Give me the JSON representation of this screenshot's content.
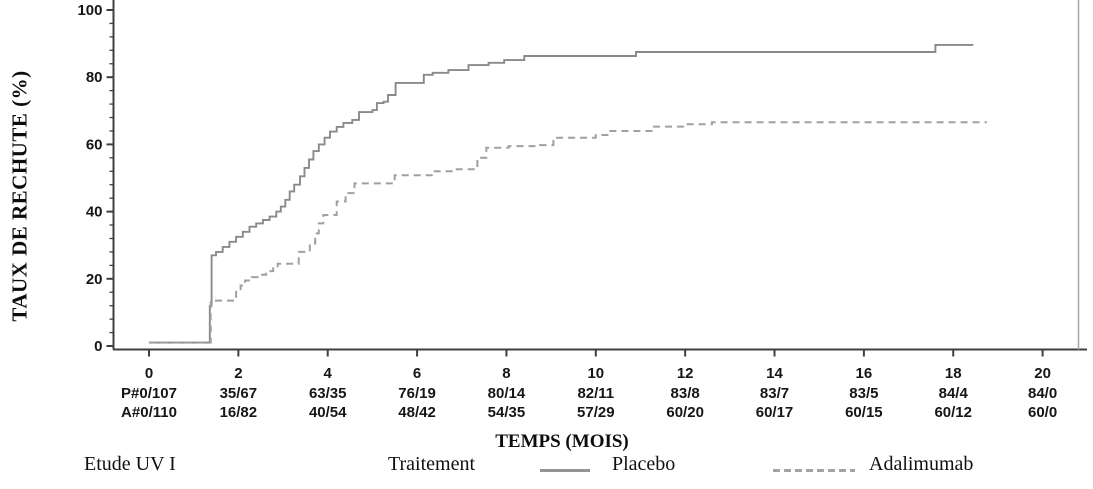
{
  "figure": {
    "legend": {
      "study": "Etude UV I",
      "treatment_header": "Traitement",
      "series1": "Placebo",
      "series2": "Adalimumab"
    }
  },
  "chart_data": {
    "type": "line",
    "subtype": "kaplan-meier-step",
    "title": "",
    "xlabel": "TEMPS (MOIS)",
    "ylabel": "TAUX DE RECHUTE (%)",
    "xlim": [
      0,
      21
    ],
    "ylim": [
      0,
      100
    ],
    "x_ticks": [
      0,
      2,
      4,
      6,
      8,
      10,
      12,
      14,
      16,
      18,
      20
    ],
    "y_ticks": [
      0,
      20,
      40,
      60,
      80,
      100
    ],
    "y_minor_step": 4,
    "grid": false,
    "legend_position": "bottom",
    "series": [
      {
        "name": "Placebo",
        "style": "solid",
        "color": "#8a8a8a",
        "points": [
          [
            0,
            1
          ],
          [
            1.32,
            1
          ],
          [
            1.36,
            12
          ],
          [
            1.4,
            27
          ],
          [
            1.5,
            28
          ],
          [
            1.65,
            29.5
          ],
          [
            1.8,
            31
          ],
          [
            1.95,
            32.5
          ],
          [
            2.1,
            34
          ],
          [
            2.25,
            35.5
          ],
          [
            2.4,
            36.5
          ],
          [
            2.55,
            37.5
          ],
          [
            2.7,
            38.5
          ],
          [
            2.85,
            40
          ],
          [
            2.95,
            41.5
          ],
          [
            3.05,
            43.5
          ],
          [
            3.15,
            46
          ],
          [
            3.25,
            48
          ],
          [
            3.38,
            50.5
          ],
          [
            3.48,
            53
          ],
          [
            3.58,
            55.5
          ],
          [
            3.68,
            58
          ],
          [
            3.8,
            60
          ],
          [
            3.93,
            62
          ],
          [
            4.05,
            63.8
          ],
          [
            4.2,
            65.2
          ],
          [
            4.35,
            66.4
          ],
          [
            4.55,
            67.3
          ],
          [
            4.7,
            69.6
          ],
          [
            5.0,
            70.2
          ],
          [
            5.1,
            72.3
          ],
          [
            5.25,
            72.7
          ],
          [
            5.35,
            74.7
          ],
          [
            5.52,
            78.3
          ],
          [
            6.15,
            80.7
          ],
          [
            6.35,
            81.3
          ],
          [
            6.7,
            82.1
          ],
          [
            7.15,
            83.6
          ],
          [
            7.6,
            84.3
          ],
          [
            7.95,
            85.1
          ],
          [
            8.4,
            86.3
          ],
          [
            10.9,
            87.5
          ],
          [
            17.6,
            89.6
          ],
          [
            18.45,
            89.6
          ]
        ]
      },
      {
        "name": "Adalimumab",
        "style": "dashed",
        "color": "#a0a0a0",
        "points": [
          [
            0,
            1
          ],
          [
            1.32,
            1
          ],
          [
            1.38,
            13.5
          ],
          [
            1.95,
            16.5
          ],
          [
            2.05,
            18
          ],
          [
            2.15,
            19.5
          ],
          [
            2.3,
            20.5
          ],
          [
            2.5,
            21.2
          ],
          [
            2.62,
            22.3
          ],
          [
            2.78,
            23.2
          ],
          [
            2.88,
            24.5
          ],
          [
            3.35,
            28
          ],
          [
            3.6,
            30.5
          ],
          [
            3.72,
            33.5
          ],
          [
            3.8,
            36.5
          ],
          [
            3.9,
            39
          ],
          [
            4.2,
            43
          ],
          [
            4.4,
            45.5
          ],
          [
            4.6,
            48.4
          ],
          [
            5.5,
            50.8
          ],
          [
            6.35,
            52
          ],
          [
            6.8,
            52.6
          ],
          [
            7.35,
            56
          ],
          [
            7.55,
            59
          ],
          [
            8.05,
            59.5
          ],
          [
            8.75,
            59.8
          ],
          [
            9.05,
            62
          ],
          [
            10.0,
            62.8
          ],
          [
            10.3,
            64
          ],
          [
            11.25,
            65.3
          ],
          [
            12.0,
            66
          ],
          [
            12.6,
            66.6
          ],
          [
            18.75,
            66.6
          ]
        ]
      }
    ],
    "at_risk": {
      "placebo": {
        "prefix": "P#",
        "values": [
          "0/107",
          "35/67",
          "63/35",
          "76/19",
          "80/14",
          "82/11",
          "83/8",
          "83/7",
          "83/5",
          "84/4",
          "84/0"
        ]
      },
      "adalimumab": {
        "prefix": "A#",
        "values": [
          "0/110",
          "16/82",
          "40/54",
          "48/42",
          "54/35",
          "57/29",
          "60/20",
          "60/17",
          "60/15",
          "60/12",
          "60/0"
        ]
      }
    },
    "colors": {
      "axis": "#3f3f3f",
      "text": "#161616",
      "right_frame": "#a8a8a8"
    }
  }
}
